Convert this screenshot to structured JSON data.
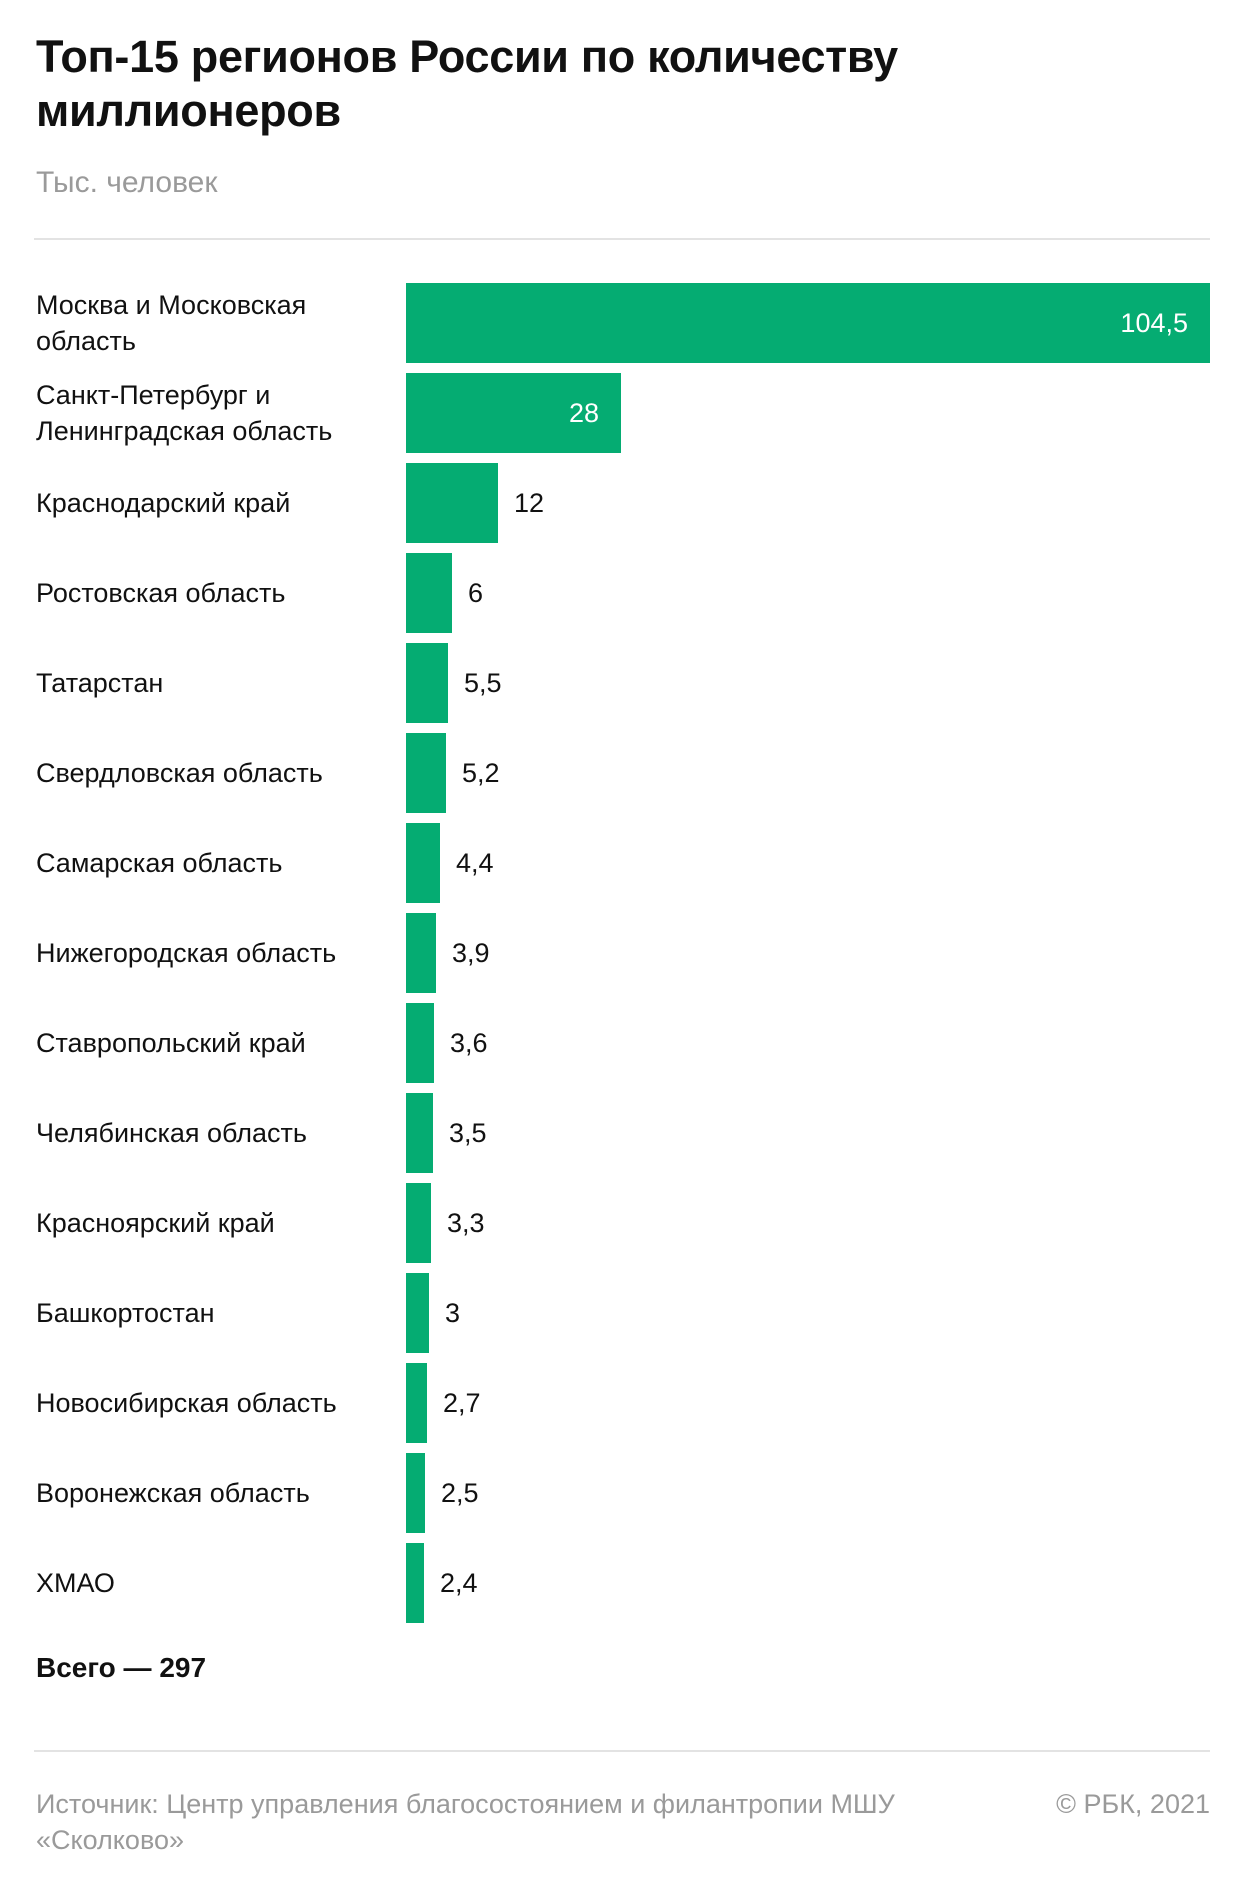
{
  "chart_data": {
    "type": "bar",
    "orientation": "horizontal",
    "title": "Топ-15 регионов России по количеству миллионеров",
    "subtitle": "Тыс. человек",
    "categories": [
      "Москва и Московская область",
      "Санкт-Петербург и Ленинградская область",
      "Краснодарский край",
      "Ростовская область",
      "Татарстан",
      "Свердловская область",
      "Самарская область",
      "Нижегородская область",
      "Ставропольский край",
      "Челябинская область",
      "Красноярский край",
      "Башкортостан",
      "Новосибирская область",
      "Воронежская область",
      "ХМАО"
    ],
    "values": [
      104.5,
      28,
      12,
      6,
      5.5,
      5.2,
      4.4,
      3.9,
      3.6,
      3.5,
      3.3,
      3,
      2.7,
      2.5,
      2.4
    ],
    "value_labels": [
      "104,5",
      "28",
      "12",
      "6",
      "5,5",
      "5,2",
      "4,4",
      "3,9",
      "3,6",
      "3,5",
      "3,3",
      "3",
      "2,7",
      "2,5",
      "2,4"
    ],
    "xlim": [
      0,
      104.5
    ],
    "bar_color": "#05AC72",
    "xlabel": "",
    "ylabel": ""
  },
  "total_label": "Всего — 297",
  "footer": {
    "source": "Источник: Центр управления благосостоянием и филантропии МШУ «Сколково»",
    "copyright": "© РБК, 2021"
  },
  "colors": {
    "accent": "#05AC72",
    "muted_text": "#9A9A9A",
    "divider": "#E3E3E3"
  }
}
